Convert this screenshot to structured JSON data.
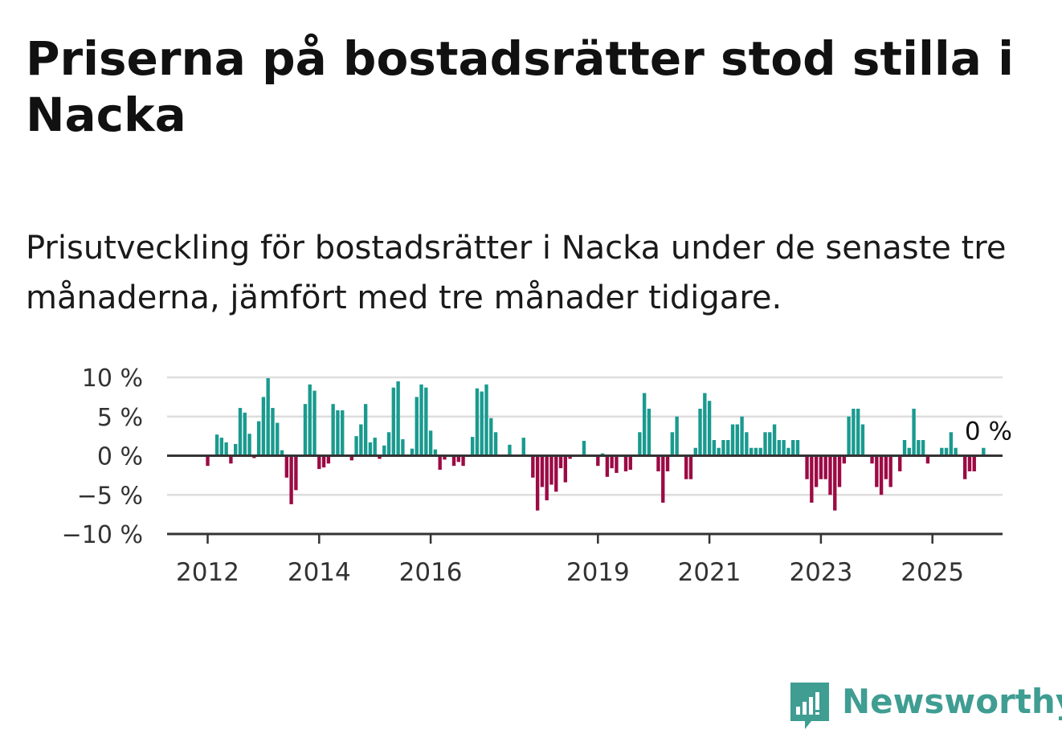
{
  "title": "Priserna på bostadsrätter stod stilla i Nacka",
  "subtitle": "Prisutveckling för bostadsrätter i Nacka under de senaste tre månaderna, jämfört med tre månader tidigare.",
  "brand": "Newsworthy",
  "colors": {
    "positive": "#1a9a8f",
    "negative": "#9c0a45",
    "grid": "#dddddd",
    "axis": "#333333",
    "brand": "#3f9d92"
  },
  "chart_data": {
    "type": "bar",
    "title": "",
    "xlabel": "",
    "ylabel": "",
    "ylim": [
      -10,
      10
    ],
    "y_ticks": [
      10,
      5,
      0,
      -5,
      -10
    ],
    "y_tick_labels": [
      "10 %",
      "5 %",
      "0 %",
      "−5 %",
      "−10 %"
    ],
    "x_ticks": [
      "2012",
      "2014",
      "2016",
      "2019",
      "2021",
      "2023",
      "2025"
    ],
    "grid": true,
    "legend": "none",
    "start": "2012-01",
    "frequency": "monthly",
    "annotation": {
      "text": "0 %",
      "at": "2025-07"
    },
    "values": [
      -1.3,
      0,
      2.7,
      2.3,
      1.7,
      -1,
      1.5,
      6.1,
      5.5,
      2.8,
      -0.3,
      4.4,
      7.5,
      9.9,
      6.1,
      4.2,
      0.7,
      -2.8,
      -6.2,
      -4.4,
      0,
      6.6,
      9.1,
      8.3,
      -1.7,
      -1.5,
      -1,
      6.6,
      5.8,
      5.8,
      0,
      -0.6,
      2.5,
      4,
      6.6,
      1.7,
      2.3,
      -0.4,
      1.3,
      3,
      8.7,
      9.5,
      2.1,
      0,
      0.9,
      7.5,
      9.1,
      8.7,
      3.2,
      0.8,
      -1.8,
      -0.5,
      0,
      -1.3,
      -0.8,
      -1.3,
      0,
      2.4,
      8.6,
      8.2,
      9.1,
      4.8,
      3,
      0,
      0,
      1.4,
      0,
      0,
      2.3,
      0,
      -2.8,
      -7,
      -4,
      -5.7,
      -3.7,
      -4.6,
      -1.6,
      -3.4,
      -0.4,
      0,
      0,
      1.9,
      0,
      0,
      -1.3,
      0.3,
      -2.7,
      -1.6,
      -2.2,
      0,
      -2,
      -1.8,
      0,
      3,
      8,
      6,
      0,
      -2,
      -6,
      -2,
      3,
      5,
      0,
      -3,
      -3,
      1,
      6,
      8,
      7,
      2,
      1,
      2,
      2,
      4,
      4,
      5,
      3,
      1,
      1,
      1,
      3,
      3,
      4,
      2,
      2,
      1,
      2,
      2,
      0,
      -3,
      -6,
      -4,
      -3,
      -3,
      -5,
      -7,
      -4,
      -1,
      5,
      6,
      6,
      4,
      0,
      -1,
      -4,
      -5,
      -3,
      -4,
      0,
      -2,
      2,
      1,
      6,
      2,
      2,
      -1,
      0,
      0,
      1,
      1,
      3,
      1,
      0,
      -3,
      -2,
      -2,
      0,
      1
    ]
  }
}
